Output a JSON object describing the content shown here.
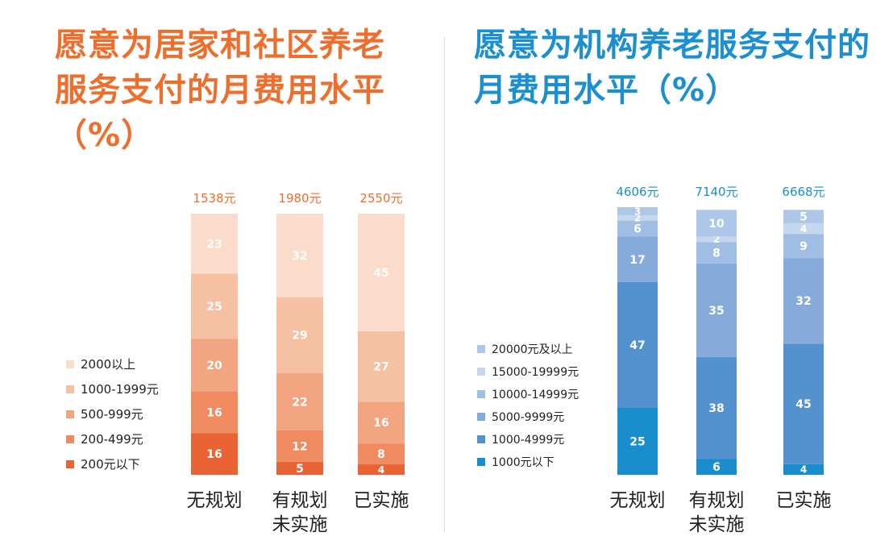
{
  "left_title": "愿意为居家和社区养老服务支付的月费用水平（%）",
  "right_title": "愿意为机构养老服务支付的月费用水平（%）",
  "chart_data": [
    {
      "type": "bar",
      "stacked": true,
      "title": "愿意为居家和社区养老服务支付的月费用水平（%）",
      "categories": [
        "无规划",
        "有规划\n未实施",
        "已实施"
      ],
      "totals": [
        "1538元",
        "1980元",
        "2550元"
      ],
      "legend_position": "left",
      "series": [
        {
          "name": "200元以下",
          "color": "#ea6335",
          "values": [
            16,
            5,
            4
          ]
        },
        {
          "name": "200-499元",
          "color": "#ef8a61",
          "values": [
            16,
            12,
            8
          ]
        },
        {
          "name": "500-999元",
          "color": "#f3a481",
          "values": [
            20,
            22,
            16
          ]
        },
        {
          "name": "1000-1999元",
          "color": "#f6c0a3",
          "values": [
            25,
            29,
            27
          ]
        },
        {
          "name": "2000以上",
          "color": "#fbdccb",
          "values": [
            23,
            32,
            45
          ]
        }
      ],
      "total_color": "#ee6f2d"
    },
    {
      "type": "bar",
      "stacked": true,
      "title": "愿意为机构养老服务支付的月费用水平（%）",
      "categories": [
        "无规划",
        "有规划\n未实施",
        "已实施"
      ],
      "totals": [
        "4606元",
        "7140元",
        "6668元"
      ],
      "legend_position": "left",
      "series": [
        {
          "name": "1000元以下",
          "color": "#1a8dcc",
          "values": [
            25,
            6,
            4
          ]
        },
        {
          "name": "1000-4999元",
          "color": "#5391cf",
          "values": [
            47,
            38,
            45
          ]
        },
        {
          "name": "5000-9999元",
          "color": "#86abdb",
          "values": [
            17,
            35,
            32
          ]
        },
        {
          "name": "10000-14999元",
          "color": "#a0bde4",
          "values": [
            6,
            8,
            9
          ]
        },
        {
          "name": "15000-19999元",
          "color": "#c4d7ef",
          "values": [
            2,
            2,
            4
          ]
        },
        {
          "name": "20000元及以上",
          "color": "#aec7e8",
          "values": [
            3,
            10,
            5
          ]
        }
      ],
      "total_color": "#1b8fd0"
    }
  ]
}
